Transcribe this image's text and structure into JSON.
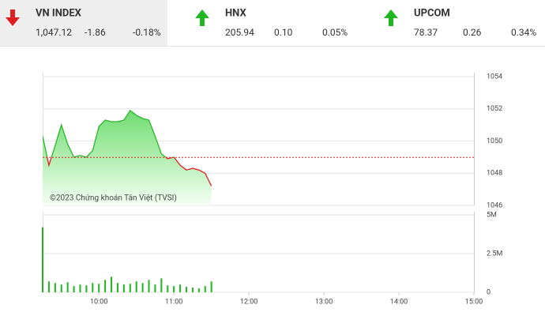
{
  "indices": [
    {
      "name": "VN INDEX",
      "value": "1,047.12",
      "change": "-1.86",
      "percent": "-0.18%",
      "direction": "down",
      "color": "#e02020",
      "selected": true
    },
    {
      "name": "HNX",
      "value": "205.94",
      "change": "0.10",
      "percent": "0.05%",
      "direction": "up",
      "color": "#1fb61f",
      "selected": false
    },
    {
      "name": "UPCOM",
      "value": "78.37",
      "change": "0.26",
      "percent": "0.34%",
      "direction": "up",
      "color": "#1fb61f",
      "selected": false
    }
  ],
  "chart_data": [
    {
      "type": "area-line",
      "x": [
        555,
        560,
        565,
        570,
        575,
        580,
        585,
        590,
        595,
        600,
        605,
        610,
        615,
        620,
        625,
        630,
        635,
        640,
        645,
        650,
        655,
        660,
        665,
        670,
        675,
        680,
        685,
        690
      ],
      "values": [
        1050.3,
        1048.5,
        1049.7,
        1051.0,
        1049.8,
        1049.0,
        1049.1,
        1049.0,
        1049.4,
        1050.9,
        1051.3,
        1051.2,
        1051.2,
        1051.3,
        1051.9,
        1051.6,
        1051.4,
        1051.3,
        1050.3,
        1049.2,
        1048.9,
        1049.0,
        1048.5,
        1048.2,
        1048.3,
        1048.2,
        1048.0,
        1047.2
      ],
      "reference": 1048.98,
      "color_up": "#2db52d",
      "color_down": "#e02020",
      "reference_color": "#e02020",
      "xlim": [
        555,
        900
      ],
      "ylim": [
        1046,
        1054
      ],
      "yticks": [
        1046,
        1048,
        1050,
        1052,
        1054
      ],
      "annotation": "©2023 Chứng khoán Tân Việt (TVSI)"
    },
    {
      "type": "bar",
      "x": [
        555,
        560,
        565,
        570,
        575,
        580,
        585,
        590,
        595,
        600,
        605,
        610,
        615,
        620,
        625,
        630,
        635,
        640,
        645,
        650,
        655,
        660,
        665,
        670,
        675,
        680,
        685,
        690
      ],
      "values": [
        4200000,
        700000,
        600000,
        500000,
        650000,
        400000,
        500000,
        450000,
        600000,
        550000,
        800000,
        1000000,
        600000,
        500000,
        550000,
        700000,
        600000,
        800000,
        500000,
        900000,
        450000,
        400000,
        500000,
        350000,
        300000,
        250000,
        400000,
        700000
      ],
      "color": "#1fb61f",
      "xlim": [
        555,
        900
      ],
      "xticks": [
        {
          "value": 600,
          "label": "10:00"
        },
        {
          "value": 660,
          "label": "11:00"
        },
        {
          "value": 720,
          "label": "12:00"
        },
        {
          "value": 780,
          "label": "13:00"
        },
        {
          "value": 840,
          "label": "14:00"
        },
        {
          "value": 900,
          "label": "15:00"
        }
      ],
      "ylim": [
        0,
        5000000
      ],
      "yticks": [
        {
          "value": 0,
          "label": "0"
        },
        {
          "value": 2500000,
          "label": "2.5M"
        },
        {
          "value": 5000000,
          "label": "5M"
        }
      ]
    }
  ]
}
